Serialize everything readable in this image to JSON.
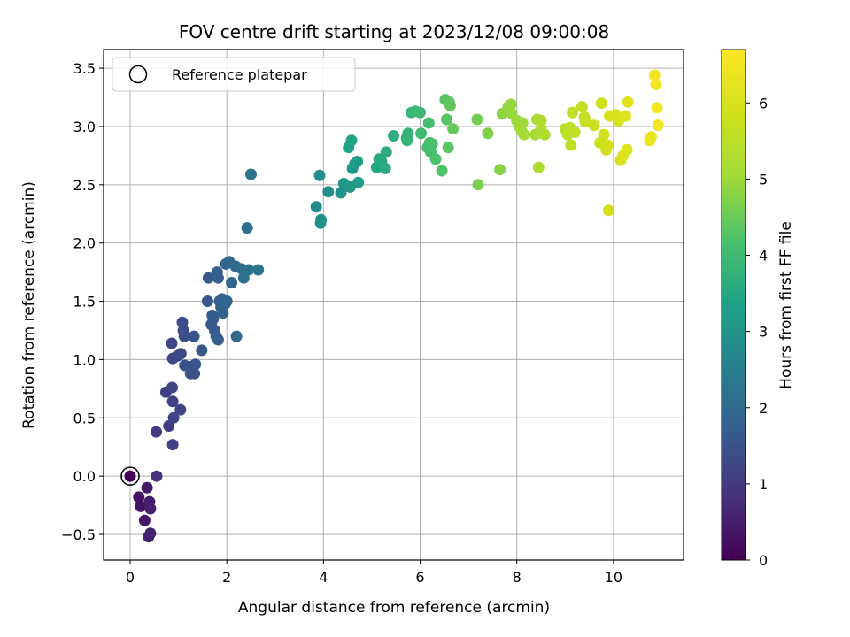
{
  "chart_data": {
    "type": "scatter",
    "title": "FOV centre drift starting at 2023/12/08 09:00:08",
    "xlabel": "Angular distance from reference (arcmin)",
    "ylabel": "Rotation from reference (arcmin)",
    "colorbar_label": "Hours from first FF file",
    "colormap": "viridis",
    "xlim": [
      -0.55,
      11.45
    ],
    "ylim": [
      -0.72,
      3.66
    ],
    "clim": [
      0,
      6.7
    ],
    "xticks": [
      "0",
      "2",
      "4",
      "6",
      "8",
      "10"
    ],
    "yticks": [
      "−0.5",
      "0.0",
      "0.5",
      "1.0",
      "1.5",
      "2.0",
      "2.5",
      "3.0",
      "3.5"
    ],
    "cticks": [
      "0",
      "1",
      "2",
      "3",
      "4",
      "5",
      "6"
    ],
    "grid": true,
    "legend": {
      "label": "Reference platepar",
      "position": "top-left"
    },
    "reference_point": {
      "x": 0,
      "y": 0
    },
    "points": [
      [
        0,
        0,
        0.03
      ],
      [
        0.18,
        -0.18,
        0.25
      ],
      [
        0.22,
        -0.26,
        0.3
      ],
      [
        0.3,
        -0.38,
        0.35
      ],
      [
        0.35,
        -0.1,
        0.4
      ],
      [
        0.4,
        -0.22,
        0.45
      ],
      [
        0.42,
        -0.28,
        0.5
      ],
      [
        0.38,
        -0.52,
        0.55
      ],
      [
        0.42,
        -0.49,
        0.58
      ],
      [
        0.55,
        0,
        0.85
      ],
      [
        0.54,
        0.38,
        0.95
      ],
      [
        0.8,
        0.43,
        1.05
      ],
      [
        0.74,
        0.72,
        1.1
      ],
      [
        0.88,
        0.27,
        1.12
      ],
      [
        0.88,
        0.64,
        1.15
      ],
      [
        0.9,
        0.5,
        1.18
      ],
      [
        0.87,
        0.76,
        1.2
      ],
      [
        1.04,
        0.57,
        1.22
      ],
      [
        0.88,
        1.01,
        1.25
      ],
      [
        0.86,
        1.14,
        1.28
      ],
      [
        0.97,
        1.03,
        1.3
      ],
      [
        1.05,
        1.05,
        1.32
      ],
      [
        1.08,
        1.32,
        1.35
      ],
      [
        1.1,
        1.25,
        1.38
      ],
      [
        1.12,
        1.2,
        1.4
      ],
      [
        1.13,
        0.95,
        1.42
      ],
      [
        1.25,
        0.88,
        1.45
      ],
      [
        1.28,
        0.94,
        1.48
      ],
      [
        1.33,
        0.88,
        1.5
      ],
      [
        1.35,
        0.96,
        1.52
      ],
      [
        1.32,
        1.2,
        1.55
      ],
      [
        1.48,
        1.08,
        1.58
      ],
      [
        1.6,
        1.5,
        1.6
      ],
      [
        1.62,
        1.7,
        1.62
      ],
      [
        1.68,
        1.3,
        1.65
      ],
      [
        1.7,
        1.38,
        1.66
      ],
      [
        1.72,
        1.35,
        1.68
      ],
      [
        1.75,
        1.25,
        1.7
      ],
      [
        1.78,
        1.2,
        1.72
      ],
      [
        1.82,
        1.17,
        1.74
      ],
      [
        1.8,
        1.75,
        1.75
      ],
      [
        1.82,
        1.7,
        1.76
      ],
      [
        1.85,
        1.5,
        1.78
      ],
      [
        1.9,
        1.52,
        1.8
      ],
      [
        1.88,
        1.45,
        1.82
      ],
      [
        1.92,
        1.4,
        1.84
      ],
      [
        1.97,
        1.48,
        1.86
      ],
      [
        2.0,
        1.5,
        1.88
      ],
      [
        1.98,
        1.82,
        1.9
      ],
      [
        2.05,
        1.84,
        1.92
      ],
      [
        2.1,
        1.66,
        1.95
      ],
      [
        2.2,
        1.2,
        1.98
      ],
      [
        2.18,
        1.8,
        2.0
      ],
      [
        2.3,
        1.78,
        2.05
      ],
      [
        2.35,
        1.7,
        2.1
      ],
      [
        2.42,
        2.13,
        2.15
      ],
      [
        2.45,
        1.77,
        2.2
      ],
      [
        2.5,
        2.59,
        2.25
      ],
      [
        2.65,
        1.77,
        2.3
      ],
      [
        3.85,
        2.31,
        2.8
      ],
      [
        3.92,
        2.58,
        2.85
      ],
      [
        3.95,
        2.2,
        2.9
      ],
      [
        3.94,
        2.17,
        2.92
      ],
      [
        4.1,
        2.44,
        2.95
      ],
      [
        4.36,
        2.43,
        3.0
      ],
      [
        4.42,
        2.51,
        3.05
      ],
      [
        4.55,
        2.48,
        3.1
      ],
      [
        4.6,
        2.64,
        3.15
      ],
      [
        4.65,
        2.68,
        3.2
      ],
      [
        4.7,
        2.7,
        3.25
      ],
      [
        4.72,
        2.52,
        3.3
      ],
      [
        4.52,
        2.82,
        3.35
      ],
      [
        4.58,
        2.88,
        3.4
      ],
      [
        5.1,
        2.65,
        3.45
      ],
      [
        5.15,
        2.72,
        3.5
      ],
      [
        5.2,
        2.7,
        3.55
      ],
      [
        5.28,
        2.64,
        3.6
      ],
      [
        5.3,
        2.78,
        3.65
      ],
      [
        5.45,
        2.92,
        3.7
      ],
      [
        5.72,
        2.9,
        3.75
      ],
      [
        5.75,
        2.94,
        3.8
      ],
      [
        5.73,
        2.88,
        3.85
      ],
      [
        5.82,
        3.12,
        3.88
      ],
      [
        5.9,
        3.13,
        3.92
      ],
      [
        6.0,
        3.12,
        3.95
      ],
      [
        6.02,
        2.94,
        4.0
      ],
      [
        6.15,
        2.82,
        4.05
      ],
      [
        6.18,
        3.03,
        4.08
      ],
      [
        6.2,
        2.86,
        4.1
      ],
      [
        6.22,
        2.78,
        4.12
      ],
      [
        6.25,
        2.85,
        4.15
      ],
      [
        6.32,
        2.72,
        4.2
      ],
      [
        6.45,
        2.62,
        4.25
      ],
      [
        6.52,
        3.23,
        4.3
      ],
      [
        6.55,
        3.06,
        4.32
      ],
      [
        6.58,
        2.82,
        4.35
      ],
      [
        6.6,
        3.21,
        4.38
      ],
      [
        6.62,
        3.18,
        4.4
      ],
      [
        6.68,
        2.98,
        4.45
      ],
      [
        7.18,
        3.06,
        4.6
      ],
      [
        7.2,
        2.5,
        4.65
      ],
      [
        7.4,
        2.94,
        4.7
      ],
      [
        7.65,
        2.63,
        4.8
      ],
      [
        7.7,
        3.11,
        4.85
      ],
      [
        7.82,
        3.17,
        4.9
      ],
      [
        7.88,
        3.19,
        4.92
      ],
      [
        7.9,
        3.11,
        4.95
      ],
      [
        8.0,
        3.05,
        5.0
      ],
      [
        8.05,
        3.0,
        5.02
      ],
      [
        8.1,
        2.96,
        5.05
      ],
      [
        8.12,
        3.03,
        5.08
      ],
      [
        8.15,
        2.93,
        5.1
      ],
      [
        8.38,
        2.93,
        5.15
      ],
      [
        8.42,
        3.06,
        5.2
      ],
      [
        8.45,
        2.65,
        5.22
      ],
      [
        8.5,
        3.05,
        5.25
      ],
      [
        8.5,
        2.98,
        5.28
      ],
      [
        8.58,
        2.93,
        5.3
      ],
      [
        9.0,
        2.98,
        5.45
      ],
      [
        9.05,
        2.93,
        5.5
      ],
      [
        9.1,
        2.99,
        5.52
      ],
      [
        9.12,
        2.84,
        5.55
      ],
      [
        9.15,
        3.12,
        5.58
      ],
      [
        9.2,
        2.95,
        5.6
      ],
      [
        9.35,
        3.17,
        5.65
      ],
      [
        9.4,
        3.08,
        5.68
      ],
      [
        9.42,
        3.04,
        5.7
      ],
      [
        9.6,
        3.01,
        5.75
      ],
      [
        9.72,
        2.86,
        5.8
      ],
      [
        9.75,
        3.2,
        5.82
      ],
      [
        9.8,
        2.93,
        5.85
      ],
      [
        9.85,
        2.8,
        5.88
      ],
      [
        9.88,
        2.84,
        5.9
      ],
      [
        9.9,
        2.28,
        5.92
      ],
      [
        9.92,
        3.09,
        5.95
      ],
      [
        10.05,
        3.1,
        6.0
      ],
      [
        10.1,
        3.05,
        6.02
      ],
      [
        10.15,
        2.71,
        6.05
      ],
      [
        10.2,
        2.75,
        6.08
      ],
      [
        10.25,
        3.09,
        6.1
      ],
      [
        10.28,
        2.8,
        6.12
      ],
      [
        10.3,
        3.21,
        6.15
      ],
      [
        10.75,
        2.88,
        6.3
      ],
      [
        10.78,
        2.91,
        6.32
      ],
      [
        10.85,
        3.44,
        6.5
      ],
      [
        10.88,
        3.36,
        6.55
      ],
      [
        10.9,
        3.16,
        6.52
      ],
      [
        10.92,
        3.01,
        6.48
      ]
    ]
  }
}
